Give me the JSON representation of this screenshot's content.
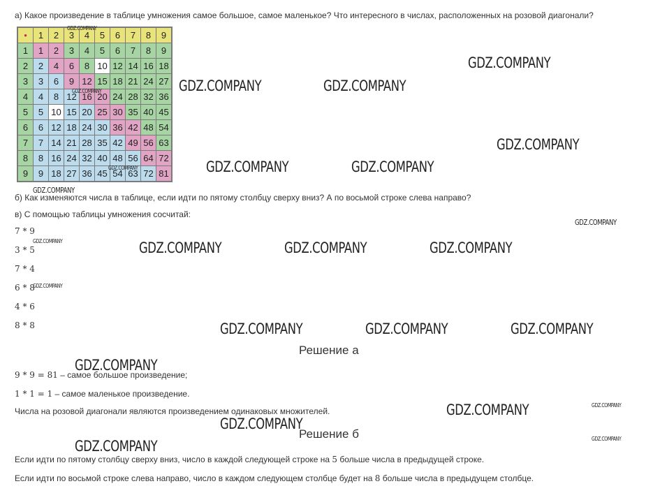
{
  "question_a": "а) Какое произведение в таблице умножения самое большое, самое маленькое? Что интересного в числах, расположенных на розовой диагонали?",
  "question_b": "б) Как изменяются числа в таблице, если идти по пятому столбцу сверху вниз? А по восьмой строке слева направо?",
  "question_c": "в) С помощью таблицы умножения сосчитай:",
  "corner_mark": "•",
  "table_header": [
    "1",
    "2",
    "3",
    "4",
    "5",
    "6",
    "7",
    "8",
    "9"
  ],
  "table_rows": [
    {
      "label": "1",
      "cells": [
        "1",
        "2",
        "3",
        "4",
        "5",
        "6",
        "7",
        "8",
        "9"
      ]
    },
    {
      "label": "2",
      "cells": [
        "2",
        "4",
        "6",
        "8",
        "10",
        "12",
        "14",
        "16",
        "18"
      ]
    },
    {
      "label": "3",
      "cells": [
        "3",
        "6",
        "9",
        "12",
        "15",
        "18",
        "21",
        "24",
        "27"
      ]
    },
    {
      "label": "4",
      "cells": [
        "4",
        "8",
        "12",
        "16",
        "20",
        "24",
        "28",
        "32",
        "36"
      ]
    },
    {
      "label": "5",
      "cells": [
        "5",
        "10",
        "15",
        "20",
        "25",
        "30",
        "35",
        "40",
        "45"
      ]
    },
    {
      "label": "6",
      "cells": [
        "6",
        "12",
        "18",
        "24",
        "30",
        "36",
        "42",
        "48",
        "54"
      ]
    },
    {
      "label": "7",
      "cells": [
        "7",
        "14",
        "21",
        "28",
        "35",
        "42",
        "49",
        "56",
        "63"
      ]
    },
    {
      "label": "8",
      "cells": [
        "8",
        "16",
        "24",
        "32",
        "40",
        "48",
        "56",
        "64",
        "72"
      ]
    },
    {
      "label": "9",
      "cells": [
        "9",
        "18",
        "27",
        "36",
        "45",
        "54",
        "63",
        "72",
        "81"
      ]
    }
  ],
  "table_colors": {
    "header": "#e9e47a",
    "green": "#a6d5a3",
    "blue": "#bcdcee",
    "pink": "#e2a4c4",
    "white": "#ffffff",
    "border": "#7a7a7a"
  },
  "exercises": [
    "7 * 9",
    "3 * 5",
    "7 * 4",
    "6 * 8",
    "4 * 6",
    "8 * 8"
  ],
  "solution_a_title": "Решение а",
  "solution_a_line1_math": "9 * 9 = 81",
  "solution_a_line1_text": " – самое большое произведение;",
  "solution_a_line2_math": "1 * 1 = 1",
  "solution_a_line2_text": " – самое маленькое произведение.",
  "solution_a_line3": "Числа на розовой диагонали являются произведением одинаковых множителей.",
  "solution_b_title": "Решение б",
  "solution_b_line1_pre": "Если идти по пятому столбцу сверху вниз, число в каждой следующей строке на ",
  "solution_b_line1_num": "5",
  "solution_b_line1_post": " больше числа в предыдущей строке.",
  "solution_b_line2_pre": "Если идти по восьмой строке слева направо, число в каждом следующем столбце будет на ",
  "solution_b_line2_num": "8",
  "solution_b_line2_post": " больше числа в предыдущем столбце.",
  "watermark": "GDZ.COMPANY"
}
